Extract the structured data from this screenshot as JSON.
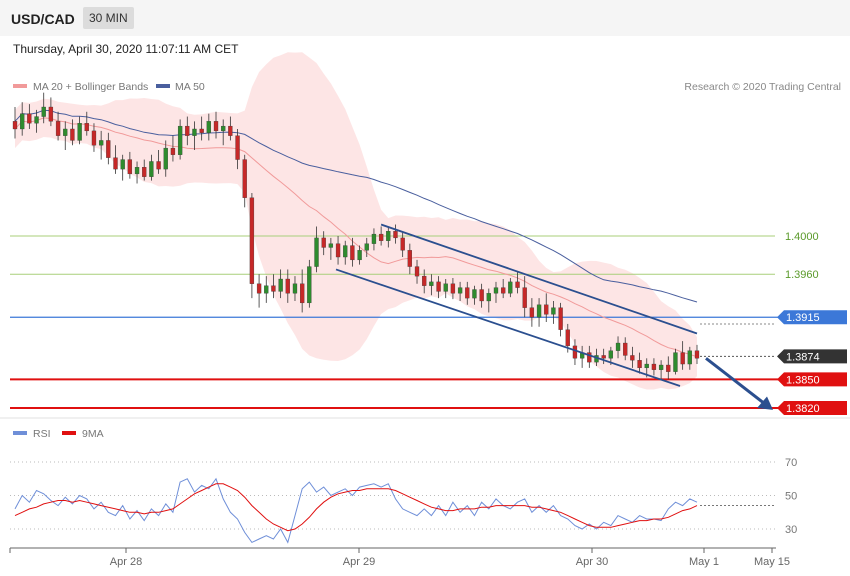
{
  "header": {
    "pair": "USD/CAD",
    "timeframe": "30 MIN"
  },
  "datetime": "Thursday, April 30, 2020 11:07:11 AM CET",
  "credit": "Research © 2020 Trading Central",
  "colors": {
    "ma20": "#f19a9a",
    "band_fill": "#fde0e0",
    "ma50": "#4a5f9e",
    "bull": "#2e8b2e",
    "bear": "#c62828",
    "support": "#e01010",
    "pivot": "#3c78d8",
    "resistance": "#a8cf7a",
    "current": "#333333",
    "channel": "#2b4f8f",
    "rsi": "#6f8fd8",
    "rsi_ma": "#e01010"
  },
  "chart_data": [
    {
      "type": "candlestick",
      "legend": [
        "MA 20 + Bollinger Bands",
        "MA 50"
      ],
      "x_labels": [
        "Apr 28",
        "Apr 29",
        "Apr 30",
        "May 1",
        "May 15"
      ],
      "ylim": [
        1.38,
        1.419
      ],
      "levels": [
        {
          "value": 1.4,
          "label": "1.4000",
          "kind": "resistance"
        },
        {
          "value": 1.396,
          "label": "1.3960",
          "kind": "resistance"
        },
        {
          "value": 1.3915,
          "label": "1.3915",
          "kind": "pivot"
        },
        {
          "value": 1.3874,
          "label": "1.3874",
          "kind": "current"
        },
        {
          "value": 1.385,
          "label": "1.3850",
          "kind": "support"
        },
        {
          "value": 1.382,
          "label": "1.3820",
          "kind": "support"
        }
      ],
      "candles": [
        [
          1.412,
          1.4135,
          1.4102,
          1.4112
        ],
        [
          1.4112,
          1.414,
          1.4105,
          1.4128
        ],
        [
          1.4128,
          1.4138,
          1.4112,
          1.4118
        ],
        [
          1.4118,
          1.4132,
          1.4108,
          1.4125
        ],
        [
          1.4125,
          1.415,
          1.4118,
          1.4135
        ],
        [
          1.4135,
          1.4145,
          1.4115,
          1.412
        ],
        [
          1.412,
          1.413,
          1.41,
          1.4105
        ],
        [
          1.4105,
          1.412,
          1.409,
          1.4112
        ],
        [
          1.4112,
          1.4122,
          1.4095,
          1.41
        ],
        [
          1.41,
          1.4125,
          1.4096,
          1.4118
        ],
        [
          1.4118,
          1.413,
          1.4105,
          1.411
        ],
        [
          1.411,
          1.4118,
          1.4088,
          1.4095
        ],
        [
          1.4095,
          1.411,
          1.408,
          1.41
        ],
        [
          1.41,
          1.4108,
          1.4075,
          1.4082
        ],
        [
          1.4082,
          1.4095,
          1.4065,
          1.407
        ],
        [
          1.407,
          1.4085,
          1.4058,
          1.408
        ],
        [
          1.408,
          1.4088,
          1.406,
          1.4065
        ],
        [
          1.4065,
          1.4078,
          1.4055,
          1.4072
        ],
        [
          1.4072,
          1.408,
          1.4058,
          1.4062
        ],
        [
          1.4062,
          1.4085,
          1.4058,
          1.4078
        ],
        [
          1.4078,
          1.409,
          1.4065,
          1.407
        ],
        [
          1.407,
          1.41,
          1.4062,
          1.4092
        ],
        [
          1.4092,
          1.4105,
          1.4078,
          1.4085
        ],
        [
          1.4085,
          1.4122,
          1.408,
          1.4115
        ],
        [
          1.4115,
          1.4125,
          1.4095,
          1.4105
        ],
        [
          1.4105,
          1.412,
          1.409,
          1.4112
        ],
        [
          1.4112,
          1.4125,
          1.41,
          1.4108
        ],
        [
          1.4108,
          1.4128,
          1.41,
          1.412
        ],
        [
          1.412,
          1.413,
          1.4102,
          1.411
        ],
        [
          1.411,
          1.4122,
          1.4095,
          1.4115
        ],
        [
          1.4115,
          1.4125,
          1.41,
          1.4105
        ],
        [
          1.4105,
          1.4112,
          1.407,
          1.408
        ],
        [
          1.408,
          1.4085,
          1.403,
          1.404
        ],
        [
          1.404,
          1.4045,
          1.3935,
          1.395
        ],
        [
          1.395,
          1.396,
          1.3925,
          1.394
        ],
        [
          1.394,
          1.3958,
          1.393,
          1.3948
        ],
        [
          1.3948,
          1.396,
          1.3935,
          1.3942
        ],
        [
          1.3942,
          1.3965,
          1.3935,
          1.3955
        ],
        [
          1.3955,
          1.3965,
          1.393,
          1.394
        ],
        [
          1.394,
          1.3958,
          1.3932,
          1.395
        ],
        [
          1.395,
          1.3965,
          1.392,
          1.393
        ],
        [
          1.393,
          1.3975,
          1.3925,
          1.3968
        ],
        [
          1.3968,
          1.401,
          1.3962,
          1.3998
        ],
        [
          1.3998,
          1.4005,
          1.398,
          1.3988
        ],
        [
          1.3988,
          1.3998,
          1.3975,
          1.3992
        ],
        [
          1.3992,
          1.4,
          1.397,
          1.3978
        ],
        [
          1.3978,
          1.3995,
          1.397,
          1.399
        ],
        [
          1.399,
          1.3998,
          1.3968,
          1.3975
        ],
        [
          1.3975,
          1.399,
          1.397,
          1.3985
        ],
        [
          1.3985,
          1.3998,
          1.3978,
          1.3992
        ],
        [
          1.3992,
          1.4008,
          1.3985,
          1.4002
        ],
        [
          1.4002,
          1.401,
          1.399,
          1.3995
        ],
        [
          1.3995,
          1.401,
          1.3988,
          1.4005
        ],
        [
          1.4005,
          1.4012,
          1.3992,
          1.3998
        ],
        [
          1.3998,
          1.4005,
          1.3978,
          1.3985
        ],
        [
          1.3985,
          1.3992,
          1.396,
          1.3968
        ],
        [
          1.3968,
          1.3975,
          1.395,
          1.3958
        ],
        [
          1.3958,
          1.3965,
          1.394,
          1.3948
        ],
        [
          1.3948,
          1.396,
          1.3938,
          1.3952
        ],
        [
          1.3952,
          1.3958,
          1.3935,
          1.3942
        ],
        [
          1.3942,
          1.3955,
          1.3935,
          1.395
        ],
        [
          1.395,
          1.3956,
          1.3934,
          1.394
        ],
        [
          1.394,
          1.3952,
          1.3932,
          1.3946
        ],
        [
          1.3946,
          1.3952,
          1.3928,
          1.3935
        ],
        [
          1.3935,
          1.3948,
          1.3928,
          1.3944
        ],
        [
          1.3944,
          1.395,
          1.3925,
          1.3932
        ],
        [
          1.3932,
          1.3945,
          1.392,
          1.394
        ],
        [
          1.394,
          1.3952,
          1.393,
          1.3946
        ],
        [
          1.3946,
          1.3955,
          1.3935,
          1.394
        ],
        [
          1.394,
          1.3956,
          1.3936,
          1.3952
        ],
        [
          1.3952,
          1.3962,
          1.394,
          1.3946
        ],
        [
          1.3946,
          1.3958,
          1.3915,
          1.3925
        ],
        [
          1.3925,
          1.3935,
          1.3905,
          1.3915
        ],
        [
          1.3915,
          1.3935,
          1.3905,
          1.3928
        ],
        [
          1.3928,
          1.394,
          1.391,
          1.3918
        ],
        [
          1.3918,
          1.3932,
          1.3908,
          1.3925
        ],
        [
          1.3925,
          1.393,
          1.3895,
          1.3902
        ],
        [
          1.3902,
          1.3908,
          1.3878,
          1.3885
        ],
        [
          1.3885,
          1.3892,
          1.3865,
          1.3872
        ],
        [
          1.3872,
          1.3885,
          1.3862,
          1.3878
        ],
        [
          1.3878,
          1.3885,
          1.3862,
          1.3868
        ],
        [
          1.3868,
          1.3882,
          1.3864,
          1.3875
        ],
        [
          1.3875,
          1.3882,
          1.3866,
          1.3872
        ],
        [
          1.3872,
          1.3884,
          1.3865,
          1.388
        ],
        [
          1.388,
          1.3895,
          1.3872,
          1.3888
        ],
        [
          1.3888,
          1.3894,
          1.387,
          1.3875
        ],
        [
          1.3875,
          1.3884,
          1.3862,
          1.387
        ],
        [
          1.387,
          1.3878,
          1.3856,
          1.3862
        ],
        [
          1.3862,
          1.3872,
          1.3852,
          1.3866
        ],
        [
          1.3866,
          1.3872,
          1.3854,
          1.386
        ],
        [
          1.386,
          1.387,
          1.385,
          1.3865
        ],
        [
          1.3865,
          1.3874,
          1.385,
          1.3858
        ],
        [
          1.3858,
          1.3882,
          1.3855,
          1.3878
        ],
        [
          1.3878,
          1.389,
          1.386,
          1.3866
        ],
        [
          1.3866,
          1.3884,
          1.386,
          1.388
        ],
        [
          1.388,
          1.3886,
          1.3866,
          1.3872
        ]
      ]
    },
    {
      "type": "line",
      "legend": [
        "RSI",
        "9MA"
      ],
      "ylim": [
        20,
        80
      ],
      "y_ticks": [
        70,
        50,
        30
      ],
      "series": [
        {
          "name": "RSI",
          "values": [
            42,
            50,
            46,
            53,
            51,
            47,
            44,
            49,
            45,
            50,
            48,
            42,
            46,
            40,
            38,
            44,
            36,
            41,
            35,
            42,
            38,
            45,
            40,
            58,
            60,
            52,
            56,
            54,
            60,
            48,
            40,
            36,
            28,
            22,
            24,
            26,
            24,
            30,
            22,
            38,
            54,
            58,
            52,
            55,
            50,
            52,
            54,
            50,
            55,
            56,
            57,
            55,
            57,
            48,
            42,
            40,
            38,
            42,
            38,
            44,
            38,
            46,
            40,
            44,
            38,
            46,
            42,
            48,
            44,
            42,
            46,
            48,
            40,
            44,
            40,
            44,
            38,
            36,
            32,
            30,
            33,
            30,
            34,
            32,
            38,
            36,
            34,
            38,
            36,
            36,
            35,
            42,
            46,
            44,
            48,
            46
          ]
        },
        {
          "name": "9MA",
          "values": [
            38,
            40,
            42,
            43,
            45,
            46,
            47,
            47,
            46,
            47,
            46,
            45,
            44,
            43,
            42,
            41,
            40,
            40,
            39,
            40,
            40,
            41,
            42,
            45,
            48,
            51,
            53,
            55,
            57,
            57,
            55,
            53,
            49,
            44,
            40,
            36,
            33,
            31,
            29,
            30,
            33,
            37,
            42,
            46,
            49,
            51,
            52,
            53,
            53,
            54,
            54,
            54,
            54,
            53,
            51,
            49,
            47,
            45,
            43,
            42,
            41,
            41,
            42,
            42,
            42,
            43,
            43,
            44,
            44,
            44,
            44,
            44,
            43,
            43,
            42,
            41,
            40,
            38,
            36,
            34,
            32,
            31,
            31,
            31,
            32,
            33,
            34,
            35,
            35,
            36,
            36,
            37,
            39,
            41,
            42,
            44
          ]
        }
      ]
    }
  ]
}
